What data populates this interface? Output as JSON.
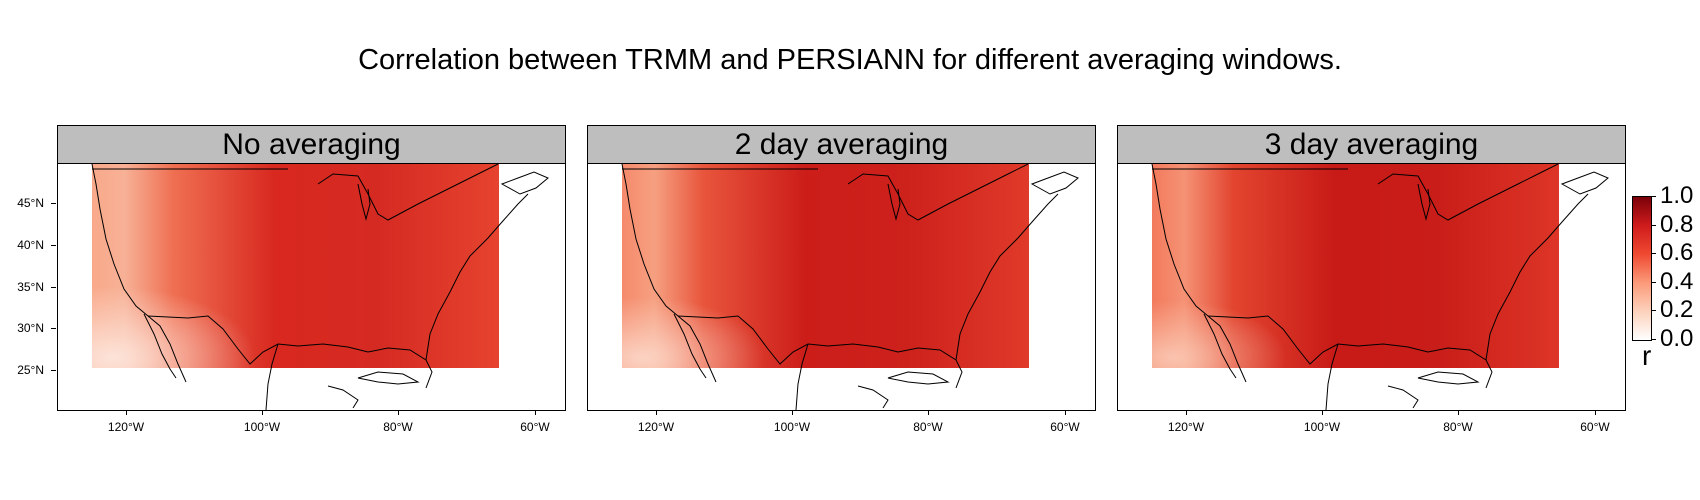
{
  "figure": {
    "title": "Correlation between TRMM and PERSIANN for different averaging windows."
  },
  "panels": [
    {
      "title": "No averaging"
    },
    {
      "title": "2 day averaging"
    },
    {
      "title": "3 day averaging"
    }
  ],
  "axes": {
    "x_ticks": [
      "120°W",
      "100°W",
      "80°W",
      "60°W"
    ],
    "y_ticks": [
      "45°N",
      "40°N",
      "35°N",
      "30°N",
      "25°N"
    ]
  },
  "colorbar": {
    "title": "r",
    "ticks": [
      "1.0",
      "0.8",
      "0.6",
      "0.4",
      "0.2",
      "0.0"
    ],
    "range": [
      0,
      1
    ],
    "colors": [
      "#ffffff",
      "#fcd2bc",
      "#fb9a7a",
      "#ef4a31",
      "#cf1b1c",
      "#7b0109"
    ]
  }
}
